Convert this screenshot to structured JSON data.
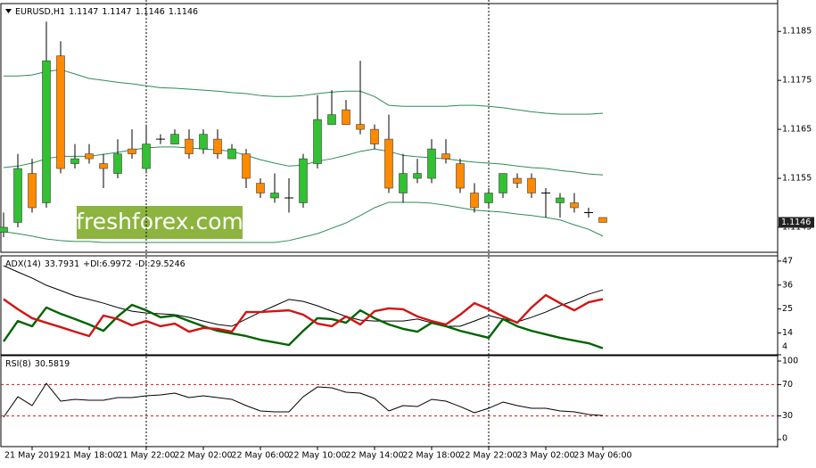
{
  "watermark": "freshforex.com",
  "chart_data": [
    {
      "type": "candlestick",
      "title": "EURUSD,H1",
      "categories": [
        null,
        null,
        "21 May 2019",
        null,
        null,
        null,
        "21 May 18:00",
        null,
        null,
        null,
        "21 May 22:00",
        null,
        null,
        null,
        "22 May 02:00",
        null,
        null,
        null,
        "22 May 06:00",
        null,
        null,
        null,
        "22 May 10:00",
        null,
        null,
        null,
        "22 May 14:00",
        null,
        null,
        null,
        "22 May 18:00",
        null,
        null,
        null,
        "22 May 22:00",
        null,
        null,
        null,
        "23 May 02:00",
        null,
        null,
        null,
        "23 May 06:00"
      ],
      "open": [
        1.1144,
        1.1146,
        1.1156,
        1.115,
        1.118,
        1.1158,
        1.116,
        1.1158,
        1.1156,
        1.1161,
        1.1157,
        1.1163,
        1.1162,
        1.1163,
        1.1161,
        1.1163,
        1.1159,
        1.116,
        1.1154,
        1.1151,
        1.1151,
        1.115,
        1.1158,
        1.1166,
        1.1169,
        1.1166,
        1.1165,
        1.1163,
        1.1152,
        1.1155,
        1.1155,
        1.116,
        1.1158,
        1.1152,
        1.115,
        1.1152,
        1.1155,
        1.1155,
        1.1152,
        1.115,
        1.115,
        1.1148,
        1.1147
      ],
      "high": [
        1.1148,
        1.116,
        1.1159,
        1.1187,
        1.1183,
        1.1162,
        1.1162,
        1.116,
        1.1163,
        1.1165,
        1.1166,
        1.1164,
        1.1165,
        1.1165,
        1.1165,
        1.1165,
        1.1162,
        1.1161,
        1.1155,
        1.1156,
        1.1155,
        1.116,
        1.1172,
        1.1173,
        1.1171,
        1.1179,
        1.1166,
        1.1168,
        1.116,
        1.1159,
        1.1163,
        1.1163,
        1.1159,
        1.1154,
        1.1153,
        1.1156,
        1.1156,
        1.1156,
        1.1153,
        1.1152,
        1.1152,
        1.1149,
        1.1147
      ],
      "low": [
        1.1143,
        1.1145,
        1.1148,
        1.1149,
        1.1156,
        1.1157,
        1.1158,
        1.1153,
        1.1155,
        1.1159,
        1.1156,
        1.1162,
        1.1162,
        1.1159,
        1.116,
        1.1159,
        1.1159,
        1.1153,
        1.1151,
        1.115,
        1.1148,
        1.1149,
        1.1157,
        1.1166,
        1.1166,
        1.1164,
        1.1161,
        1.1152,
        1.115,
        1.1154,
        1.1154,
        1.1158,
        1.1152,
        1.1148,
        1.1149,
        1.1151,
        1.1153,
        1.1151,
        1.1147,
        1.1147,
        1.1148,
        1.1147,
        1.1146
      ],
      "close": [
        1.1145,
        1.1157,
        1.1149,
        1.1179,
        1.1157,
        1.1159,
        1.1159,
        1.1157,
        1.116,
        1.116,
        1.1162,
        1.1163,
        1.1164,
        1.116,
        1.1164,
        1.116,
        1.1161,
        1.1155,
        1.1152,
        1.1152,
        1.1151,
        1.1159,
        1.1167,
        1.1168,
        1.1166,
        1.1165,
        1.1162,
        1.1153,
        1.1156,
        1.1156,
        1.1161,
        1.1159,
        1.1153,
        1.1149,
        1.1152,
        1.1156,
        1.1154,
        1.1152,
        1.1152,
        1.1151,
        1.1149,
        1.1148,
        1.1146
      ],
      "up_color": "#33c133",
      "down_color": "#ff8a00",
      "series": [
        {
          "color": "#2e8b57",
          "values": [
            1.11759,
            1.11759,
            1.11761,
            1.11768,
            1.11772,
            1.11763,
            1.11754,
            1.1175,
            1.11746,
            1.11743,
            1.11739,
            1.11735,
            1.11734,
            1.11732,
            1.1173,
            1.11728,
            1.11725,
            1.11723,
            1.11719,
            1.11717,
            1.11717,
            1.11719,
            1.11723,
            1.11726,
            1.11728,
            1.11728,
            1.11717,
            1.11699,
            1.11697,
            1.11697,
            1.11697,
            1.11697,
            1.11699,
            1.11699,
            1.11697,
            1.11694,
            1.1169,
            1.11686,
            1.11683,
            1.11681,
            1.11681,
            1.11681,
            1.11683
          ]
        },
        {
          "color": "#2e8b57",
          "values": [
            1.11572,
            1.11575,
            1.11581,
            1.1159,
            1.11595,
            1.11595,
            1.11595,
            1.11599,
            1.11603,
            1.11608,
            1.11612,
            1.11614,
            1.11614,
            1.11612,
            1.1161,
            1.11608,
            1.11605,
            1.11597,
            1.11588,
            1.11581,
            1.11575,
            1.11577,
            1.11585,
            1.1159,
            1.11597,
            1.11605,
            1.1161,
            1.11605,
            1.11597,
            1.11594,
            1.11592,
            1.1159,
            1.11586,
            1.11583,
            1.11581,
            1.11579,
            1.11575,
            1.11572,
            1.1157,
            1.11566,
            1.11563,
            1.11559,
            1.11557
          ]
        },
        {
          "color": "#2e8b57",
          "values": [
            1.11441,
            1.11437,
            1.11432,
            1.11426,
            1.11423,
            1.11421,
            1.11421,
            1.11419,
            1.11419,
            1.11419,
            1.11419,
            1.11419,
            1.11419,
            1.11419,
            1.11419,
            1.11419,
            1.11419,
            1.11419,
            1.11419,
            1.11419,
            1.11423,
            1.1143,
            1.11437,
            1.11448,
            1.11459,
            1.11474,
            1.1149,
            1.11501,
            1.11501,
            1.11501,
            1.11499,
            1.11495,
            1.1149,
            1.11485,
            1.11483,
            1.11481,
            1.11477,
            1.11474,
            1.1147,
            1.11465,
            1.11455,
            1.11446,
            1.11432
          ]
        }
      ],
      "ylim": [
        1.11399,
        1.11905
      ],
      "yticks": [
        1.1145,
        1.1155,
        1.1165,
        1.1175,
        1.1185
      ]
    },
    {
      "type": "line",
      "title": "ADX(14)",
      "series": [
        {
          "color": "#000000",
          "values": [
            44.9,
            42.0,
            39.2,
            35.9,
            33.5,
            31.0,
            29.4,
            27.7,
            25.7,
            24.0,
            23.2,
            22.8,
            22.4,
            21.2,
            19.5,
            17.9,
            17.1,
            20.4,
            23.6,
            26.5,
            29.4,
            28.5,
            26.5,
            24.0,
            21.6,
            19.9,
            19.5,
            19.5,
            19.5,
            20.4,
            18.7,
            17.1,
            17.1,
            19.5,
            22.0,
            20.4,
            19.1,
            21.2,
            23.6,
            26.5,
            28.9,
            31.8,
            33.7931
          ]
        },
        {
          "name": "+DI:",
          "color": "#006400",
          "values": [
            10.1,
            19.5,
            17.1,
            25.7,
            22.8,
            20.4,
            17.9,
            15.0,
            21.6,
            26.9,
            24.4,
            21.2,
            22.0,
            19.5,
            17.1,
            15.0,
            13.8,
            12.6,
            10.9,
            9.7,
            8.5,
            15.0,
            20.8,
            20.4,
            18.7,
            24.4,
            20.8,
            17.9,
            15.9,
            14.6,
            18.7,
            17.1,
            15.0,
            13.4,
            11.8,
            20.4,
            17.1,
            15.0,
            13.4,
            11.8,
            10.5,
            9.3,
            6.9972
          ]
        },
        {
          "name": "-DI:",
          "color": "#d21414",
          "values": [
            29.5,
            24.9,
            20.8,
            18.7,
            16.7,
            14.6,
            12.6,
            22.0,
            20.4,
            17.5,
            19.5,
            17.1,
            18.3,
            14.6,
            16.3,
            15.9,
            14.6,
            23.6,
            23.6,
            24.0,
            24.4,
            22.4,
            18.3,
            17.1,
            21.6,
            17.9,
            24.0,
            25.3,
            24.9,
            21.6,
            19.5,
            17.9,
            22.4,
            27.7,
            24.9,
            21.6,
            18.7,
            25.7,
            31.4,
            27.7,
            24.4,
            28.1,
            29.5246
          ]
        }
      ],
      "ylim": [
        4,
        49
      ],
      "yticks": [
        4,
        14,
        25,
        36,
        47
      ]
    },
    {
      "type": "line",
      "title": "RSI(8)",
      "series": [
        {
          "color": "#000000",
          "values": [
            28.4,
            54.5,
            43.2,
            71.6,
            48.9,
            51.1,
            50.0,
            50.0,
            53.4,
            53.4,
            55.7,
            56.8,
            59.1,
            53.4,
            55.7,
            53.4,
            51.1,
            43.2,
            36.4,
            35.2,
            35.2,
            54.5,
            67.0,
            65.9,
            60.2,
            59.1,
            52.3,
            36.4,
            43.2,
            42.0,
            51.1,
            48.9,
            42.0,
            34.1,
            39.8,
            47.7,
            43.2,
            39.8,
            39.8,
            36.4,
            35.2,
            31.8,
            30.5819
          ]
        }
      ],
      "levels": {
        "values": [
          70,
          30
        ],
        "color": "#dd1111"
      },
      "ylim": [
        -9.1,
        105.7
      ],
      "yticks": [
        0,
        30,
        70,
        100
      ]
    }
  ]
}
